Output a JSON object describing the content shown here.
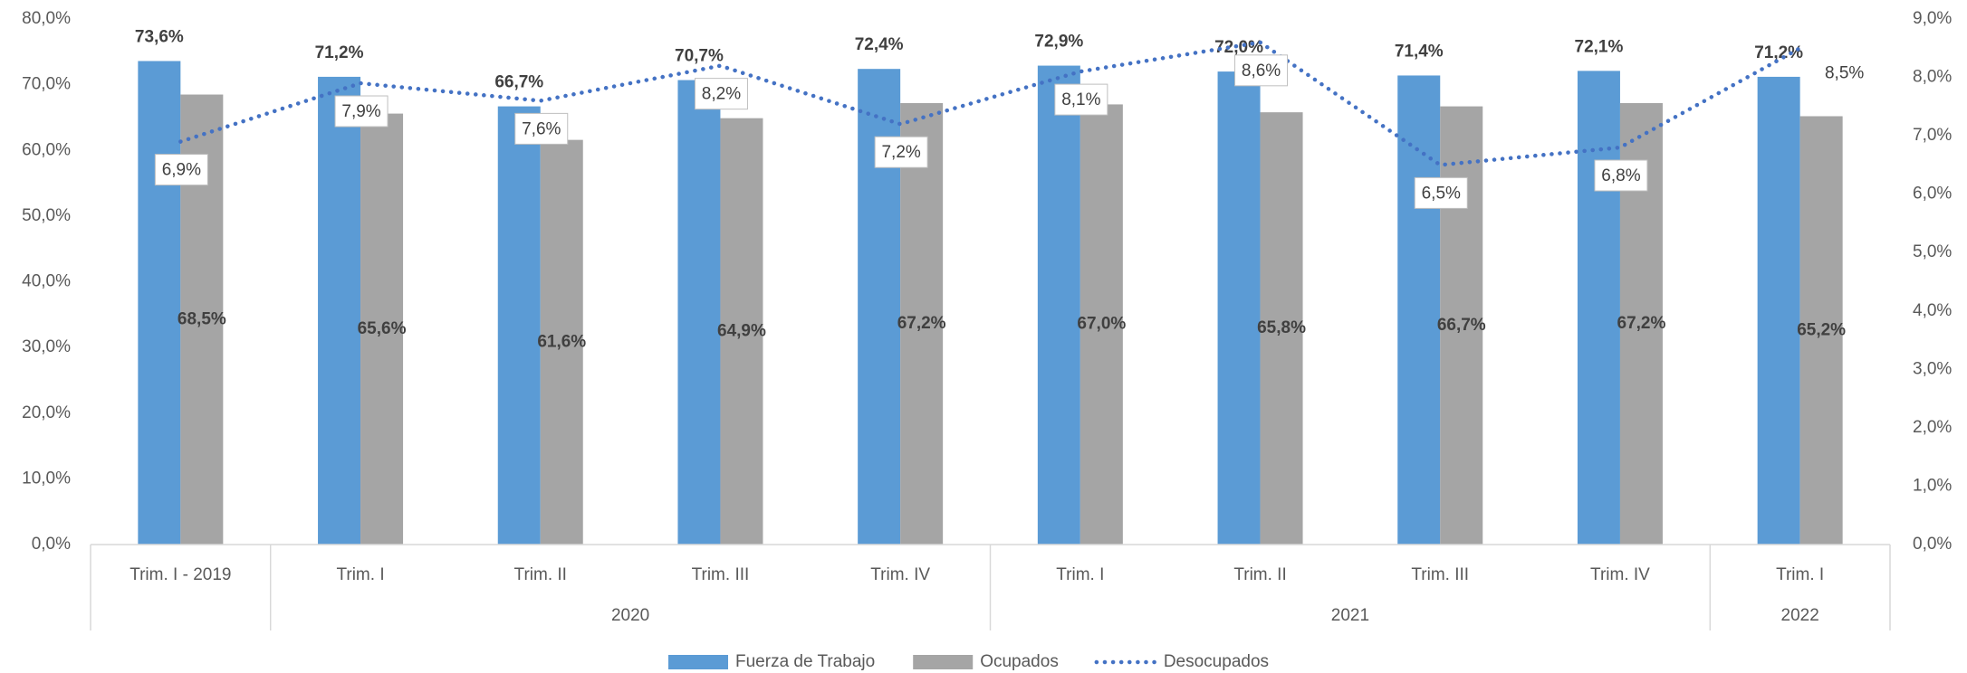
{
  "chart_data": {
    "type": "bar_line",
    "categories": [
      "Trim. I - 2019",
      "Trim. I",
      "Trim. II",
      "Trim. III",
      "Trim. IV",
      "Trim. I",
      "Trim. II",
      "Trim. III",
      "Trim. IV",
      "Trim. I"
    ],
    "groups": [
      {
        "label": null,
        "count": 1
      },
      {
        "label": "2020",
        "count": 4
      },
      {
        "label": "2021",
        "count": 4
      },
      {
        "label": "2022",
        "count": 1
      }
    ],
    "series": [
      {
        "name": "Fuerza de Trabajo",
        "color": "#5b9bd5",
        "values": [
          73.6,
          71.2,
          66.7,
          70.7,
          72.4,
          72.9,
          72.0,
          71.4,
          72.1,
          71.2
        ],
        "value_labels": [
          "73,6%",
          "71,2%",
          "66,7%",
          "70,7%",
          "72,4%",
          "72,9%",
          "72,0%",
          "71,4%",
          "72,1%",
          "71,2%"
        ]
      },
      {
        "name": "Ocupados",
        "color": "#a5a5a5",
        "values": [
          68.5,
          65.6,
          61.6,
          64.9,
          67.2,
          67.0,
          65.8,
          66.7,
          67.2,
          65.2
        ],
        "value_labels": [
          "68,5%",
          "65,6%",
          "61,6%",
          "64,9%",
          "67,2%",
          "67,0%",
          "65,8%",
          "66,7%",
          "67,2%",
          "65,2%"
        ]
      },
      {
        "name": "Desocupados",
        "color": "#4472c4",
        "axis": "y2",
        "values": [
          6.9,
          7.9,
          7.6,
          8.2,
          7.2,
          8.1,
          8.6,
          6.5,
          6.8,
          8.5
        ],
        "value_labels": [
          "6,9%",
          "7,9%",
          "7,6%",
          "8,2%",
          "7,2%",
          "8,1%",
          "8,6%",
          "6,5%",
          "6,8%",
          "8,5%"
        ]
      }
    ],
    "ylim": [
      0,
      80
    ],
    "yticks": [
      {
        "value": 0,
        "label": "0,0%"
      },
      {
        "value": 10,
        "label": "10,0%"
      },
      {
        "value": 20,
        "label": "20,0%"
      },
      {
        "value": 30,
        "label": "30,0%"
      },
      {
        "value": 40,
        "label": "40,0%"
      },
      {
        "value": 50,
        "label": "50,0%"
      },
      {
        "value": 60,
        "label": "60,0%"
      },
      {
        "value": 70,
        "label": "70,0%"
      },
      {
        "value": 80,
        "label": "80,0%"
      }
    ],
    "y2lim": [
      0,
      9
    ],
    "y2ticks": [
      {
        "value": 0,
        "label": "0,0%"
      },
      {
        "value": 1,
        "label": "1,0%"
      },
      {
        "value": 2,
        "label": "2,0%"
      },
      {
        "value": 3,
        "label": "3,0%"
      },
      {
        "value": 4,
        "label": "4,0%"
      },
      {
        "value": 5,
        "label": "5,0%"
      },
      {
        "value": 6,
        "label": "6,0%"
      },
      {
        "value": 7,
        "label": "7,0%"
      },
      {
        "value": 8,
        "label": "8,0%"
      },
      {
        "value": 9,
        "label": "9,0%"
      }
    ],
    "legend": "bottom"
  }
}
